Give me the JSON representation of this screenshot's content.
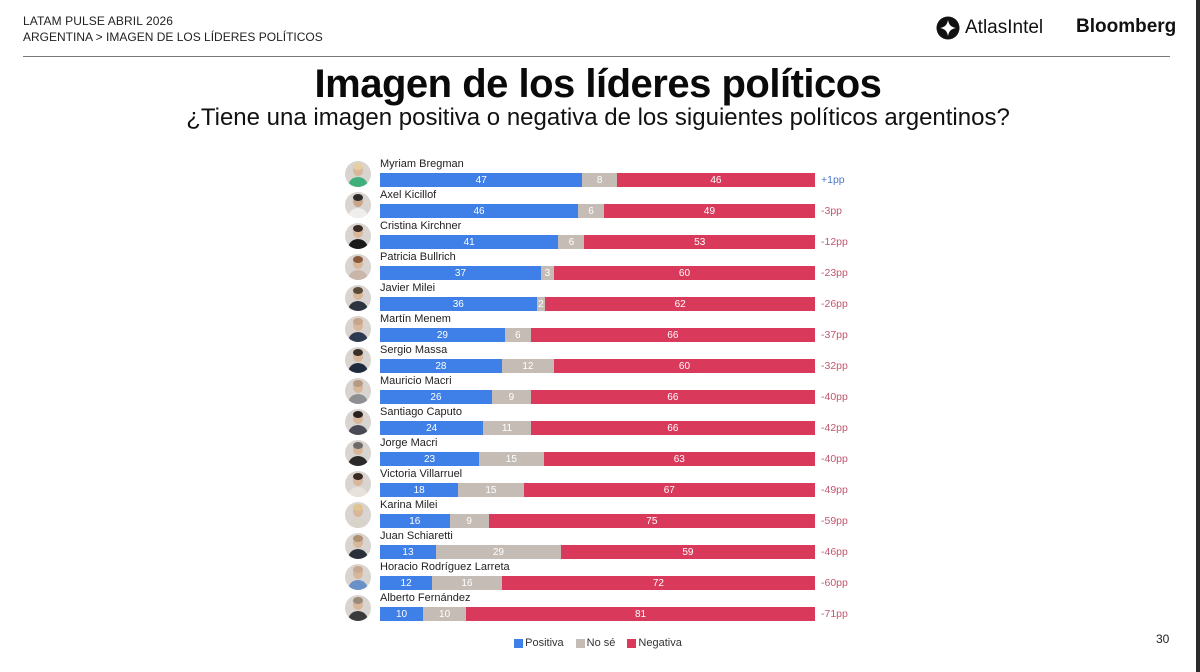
{
  "header": {
    "line1": "LATAM PULSE ABRIL 2026",
    "line2": "ARGENTINA > IMAGEN DE LOS LÍDERES POLÍTICOS",
    "logo_atlas": "AtlasIntel",
    "logo_bloomberg": "Bloomberg"
  },
  "page_number": "30",
  "colors": {
    "positive": "#3f7fe8",
    "unsure": "#c4bcb5",
    "negative": "#d93a5c",
    "net_positive": "#4a78c8",
    "net_negative": "#c0566e"
  },
  "chart_data": {
    "type": "bar",
    "orientation": "horizontal",
    "stacked": true,
    "title": "Imagen de los líderes políticos",
    "subtitle": "¿Tiene una imagen positiva o negativa de los siguientes políticos argentinos?",
    "xlim": [
      0,
      100
    ],
    "legend_position": "bottom",
    "categories": [
      "Myriam Bregman",
      "Axel Kicillof",
      "Cristina Kirchner",
      "Patricia Bullrich",
      "Javier Milei",
      "Martín Menem",
      "Sergio Massa",
      "Mauricio Macri",
      "Santiago Caputo",
      "Jorge Macri",
      "Victoria Villarruel",
      "Karina Milei",
      "Juan Schiaretti",
      "Horacio Rodríguez Larreta",
      "Alberto Fernández"
    ],
    "series": [
      {
        "name": "Positiva",
        "values": [
          47,
          46,
          41,
          37,
          36,
          29,
          28,
          26,
          24,
          23,
          18,
          16,
          13,
          12,
          10
        ]
      },
      {
        "name": "No sé",
        "values": [
          8,
          6,
          6,
          3,
          2,
          6,
          12,
          9,
          11,
          15,
          15,
          9,
          29,
          16,
          10
        ]
      },
      {
        "name": "Negativa",
        "values": [
          46,
          49,
          53,
          60,
          62,
          66,
          60,
          66,
          66,
          63,
          67,
          75,
          59,
          72,
          81
        ]
      }
    ],
    "net_labels": [
      "+1pp",
      "-3pp",
      "-12pp",
      "-23pp",
      "-26pp",
      "-37pp",
      "-32pp",
      "-40pp",
      "-42pp",
      "-40pp",
      "-49pp",
      "-59pp",
      "-46pp",
      "-60pp",
      "-71pp"
    ]
  }
}
